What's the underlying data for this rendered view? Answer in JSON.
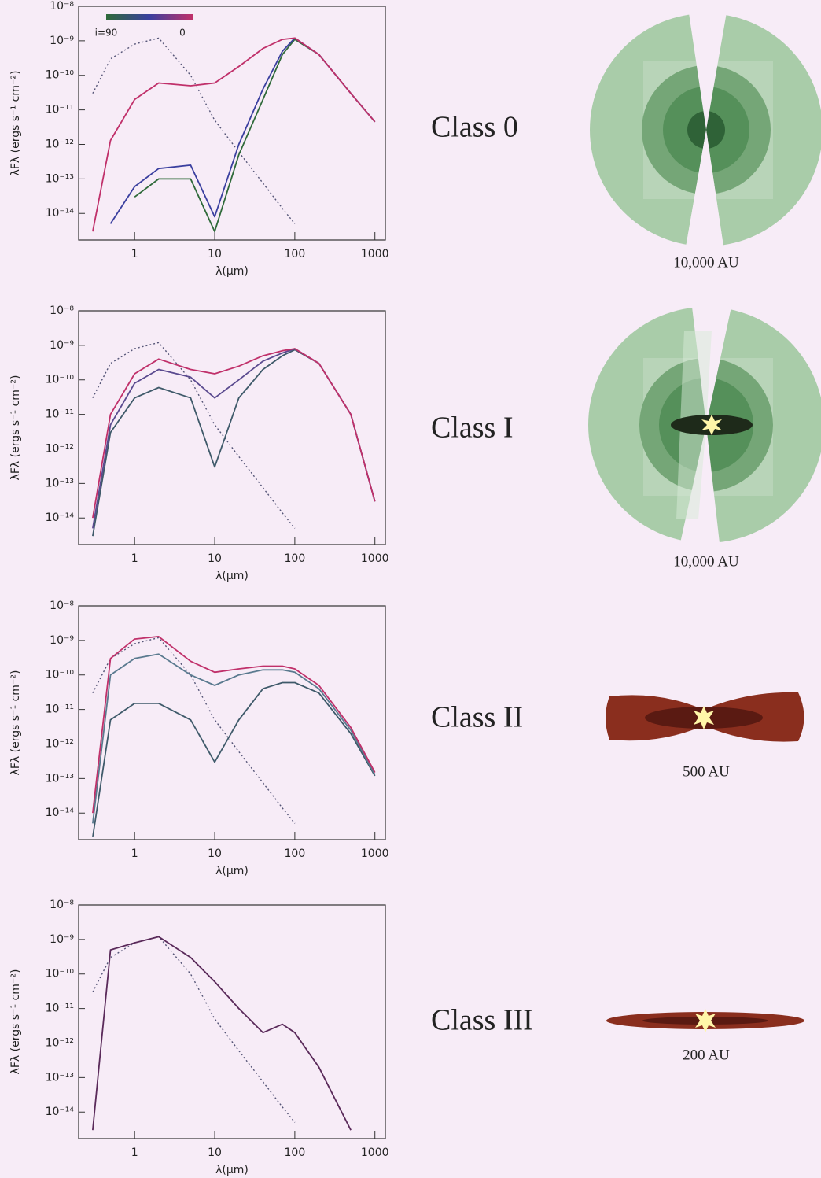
{
  "chart_data": [
    {
      "type": "line",
      "xscale": "log",
      "yscale": "log",
      "xlabel": "λ(μm)",
      "ylabel": "λFλ (ergs s⁻¹ cm⁻²)",
      "xlim": [
        0.2,
        1350
      ],
      "ylim": [
        1.7e-15,
        1e-08
      ],
      "xticks": [
        1,
        10,
        100,
        1000
      ],
      "yticks": [
        {
          "value": 1e-14,
          "label": "10⁻¹⁴"
        },
        {
          "value": 1e-13,
          "label": "10⁻¹³"
        },
        {
          "value": 1e-12,
          "label": "10⁻¹²"
        },
        {
          "value": 1e-11,
          "label": "10⁻¹¹"
        },
        {
          "value": 1e-10,
          "label": "10⁻¹⁰"
        },
        {
          "value": 1e-09,
          "label": "10⁻⁹"
        },
        {
          "value": 1e-08,
          "label": "10⁻⁸"
        }
      ],
      "colorbar": {
        "labels": [
          "i=90",
          "0"
        ],
        "colors": [
          "#2f6a3a",
          "#3a3f9f",
          "#c0306a"
        ]
      },
      "x": [
        0.3,
        0.5,
        1,
        2,
        5,
        10,
        20,
        40,
        70,
        100,
        200,
        500,
        1000
      ],
      "series": [
        {
          "color": "#555577",
          "style": "dotted",
          "values": [
            3e-11,
            3e-10,
            8e-10,
            1.2e-09,
            1e-10,
            5e-12,
            6e-13,
            7.5e-14,
            1.4e-14,
            5e-15,
            null,
            null,
            null
          ]
        },
        {
          "color": "#2f6a3a",
          "values": [
            null,
            null,
            3e-14,
            1e-13,
            1e-13,
            3e-15,
            5e-13,
            2e-11,
            4e-10,
            1.1e-09,
            4e-10,
            3e-11,
            4.5e-12
          ]
        },
        {
          "color": "#3a3f9f",
          "values": [
            null,
            5e-15,
            6e-14,
            2e-13,
            2.5e-13,
            8e-15,
            1e-12,
            4e-11,
            5e-10,
            1.2e-09,
            4e-10,
            3e-11,
            4.5e-12
          ]
        },
        {
          "color": "#c0306a",
          "values": [
            3e-15,
            1.3e-12,
            2e-11,
            6e-11,
            5e-11,
            6e-11,
            1.8e-10,
            6e-10,
            1.1e-09,
            1.2e-09,
            4e-10,
            3e-11,
            4.5e-12
          ]
        }
      ]
    },
    {
      "type": "line",
      "xscale": "log",
      "yscale": "log",
      "xlabel": "λ(μm)",
      "ylabel": "λFλ (ergs s⁻¹ cm⁻²)",
      "xlim": [
        0.2,
        1350
      ],
      "ylim": [
        1.7e-15,
        1e-08
      ],
      "xticks": [
        1,
        10,
        100,
        1000
      ],
      "yticks": [
        {
          "value": 1e-14,
          "label": "10⁻¹⁴"
        },
        {
          "value": 1e-13,
          "label": "10⁻¹³"
        },
        {
          "value": 1e-12,
          "label": "10⁻¹²"
        },
        {
          "value": 1e-11,
          "label": "10⁻¹¹"
        },
        {
          "value": 1e-10,
          "label": "10⁻¹⁰"
        },
        {
          "value": 1e-09,
          "label": "10⁻⁹"
        },
        {
          "value": 1e-08,
          "label": "10⁻⁸"
        }
      ],
      "x": [
        0.3,
        0.5,
        1,
        2,
        5,
        10,
        20,
        40,
        70,
        100,
        200,
        500,
        1000
      ],
      "series": [
        {
          "color": "#555577",
          "style": "dotted",
          "values": [
            3e-11,
            3e-10,
            8e-10,
            1.2e-09,
            1e-10,
            5e-12,
            6e-13,
            7.5e-14,
            1.4e-14,
            5e-15,
            null,
            null,
            null
          ]
        },
        {
          "color": "#3f5a6a",
          "values": [
            3e-15,
            3e-12,
            3e-11,
            6e-11,
            3e-11,
            3e-13,
            3e-11,
            2e-10,
            5e-10,
            7.5e-10,
            3e-10,
            1e-11,
            3e-14
          ]
        },
        {
          "color": "#5a4a8f",
          "values": [
            5e-15,
            5e-12,
            8e-11,
            2e-10,
            1.2e-10,
            3e-11,
            1e-10,
            3.5e-10,
            6e-10,
            8e-10,
            3e-10,
            1e-11,
            3e-14
          ]
        },
        {
          "color": "#c0306a",
          "values": [
            1e-14,
            1e-11,
            1.5e-10,
            4e-10,
            2e-10,
            1.5e-10,
            2.5e-10,
            5e-10,
            7e-10,
            8e-10,
            3e-10,
            1e-11,
            3e-14
          ]
        }
      ]
    },
    {
      "type": "line",
      "xscale": "log",
      "yscale": "log",
      "xlabel": "λ(μm)",
      "ylabel": "λFλ (ergs s⁻¹ cm⁻²)",
      "xlim": [
        0.2,
        1350
      ],
      "ylim": [
        1.7e-15,
        1e-08
      ],
      "xticks": [
        1,
        10,
        100,
        1000
      ],
      "yticks": [
        {
          "value": 1e-14,
          "label": "10⁻¹⁴"
        },
        {
          "value": 1e-13,
          "label": "10⁻¹³"
        },
        {
          "value": 1e-12,
          "label": "10⁻¹²"
        },
        {
          "value": 1e-11,
          "label": "10⁻¹¹"
        },
        {
          "value": 1e-10,
          "label": "10⁻¹⁰"
        },
        {
          "value": 1e-09,
          "label": "10⁻⁹"
        },
        {
          "value": 1e-08,
          "label": "10⁻⁸"
        }
      ],
      "x": [
        0.3,
        0.5,
        1,
        2,
        5,
        10,
        20,
        40,
        70,
        100,
        200,
        500,
        1000
      ],
      "series": [
        {
          "color": "#555577",
          "style": "dotted",
          "values": [
            3e-11,
            3e-10,
            8e-10,
            1.2e-09,
            1e-10,
            5e-12,
            6e-13,
            7.5e-14,
            1.4e-14,
            5e-15,
            null,
            null,
            null
          ]
        },
        {
          "color": "#3f5a6a",
          "values": [
            2e-15,
            5e-12,
            1.5e-11,
            1.5e-11,
            5e-12,
            3e-13,
            5e-12,
            4e-11,
            6e-11,
            6e-11,
            3e-11,
            2e-12,
            1.2e-13
          ]
        },
        {
          "color": "#5a7a8f",
          "values": [
            5e-15,
            1e-10,
            3e-10,
            4e-10,
            1e-10,
            5e-11,
            1e-10,
            1.4e-10,
            1.4e-10,
            1.2e-10,
            4e-11,
            2.5e-12,
            1.3e-13
          ]
        },
        {
          "color": "#c0306a",
          "values": [
            1e-14,
            3e-10,
            1.1e-09,
            1.3e-09,
            2.5e-10,
            1.2e-10,
            1.5e-10,
            1.8e-10,
            1.8e-10,
            1.5e-10,
            5e-11,
            3e-12,
            1.5e-13
          ]
        }
      ]
    },
    {
      "type": "line",
      "xscale": "log",
      "yscale": "log",
      "xlabel": "λ(μm)",
      "ylabel": "λFλ (ergs s⁻¹ cm⁻²)",
      "xlim": [
        0.2,
        1350
      ],
      "ylim": [
        1.7e-15,
        1e-08
      ],
      "xticks": [
        1,
        10,
        100,
        1000
      ],
      "yticks": [
        {
          "value": 1e-14,
          "label": "10⁻¹⁴"
        },
        {
          "value": 1e-13,
          "label": "10⁻¹³"
        },
        {
          "value": 1e-12,
          "label": "10⁻¹²"
        },
        {
          "value": 1e-11,
          "label": "10⁻¹¹"
        },
        {
          "value": 1e-10,
          "label": "10⁻¹⁰"
        },
        {
          "value": 1e-09,
          "label": "10⁻⁹"
        },
        {
          "value": 1e-08,
          "label": "10⁻⁸"
        }
      ],
      "x": [
        0.3,
        0.5,
        1,
        2,
        5,
        10,
        20,
        40,
        70,
        100,
        200,
        500,
        1000
      ],
      "series": [
        {
          "color": "#555577",
          "style": "dotted",
          "values": [
            3e-11,
            3e-10,
            8e-10,
            1.2e-09,
            1e-10,
            5e-12,
            6e-13,
            7.5e-14,
            1.4e-14,
            5e-15,
            null,
            null,
            null
          ]
        },
        {
          "color": "#5a2a5a",
          "values": [
            3e-15,
            5e-10,
            8e-10,
            1.2e-09,
            3e-10,
            6e-11,
            1e-11,
            2e-12,
            3.5e-12,
            2e-12,
            2e-13,
            3e-15,
            null
          ]
        }
      ]
    }
  ],
  "panels": [
    {
      "label": "Class 0",
      "scale": "10,000 AU"
    },
    {
      "label": "Class I",
      "scale": "10,000 AU"
    },
    {
      "label": "Class II",
      "scale": "500 AU"
    },
    {
      "label": "Class III",
      "scale": "200 AU"
    }
  ]
}
